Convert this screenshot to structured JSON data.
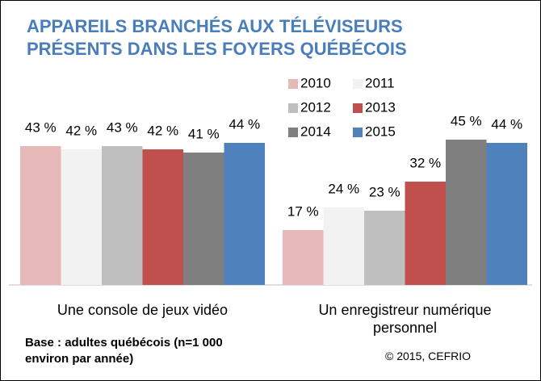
{
  "chart_data": {
    "type": "bar",
    "title": "APPAREILS BRANCHÉS AUX TÉLÉVISEURS\nPRÉSENTS DANS LES FOYERS QUÉBÉCOIS",
    "categories": [
      "Une console de jeux vidéo",
      "Un enregistreur numérique\npersonnel"
    ],
    "series": [
      {
        "name": "2010",
        "color": "#e6b9b8",
        "values": [
          43,
          17
        ],
        "value_labels": [
          "43 %",
          "17 %"
        ]
      },
      {
        "name": "2011",
        "color": "#f2f2f2",
        "values": [
          42,
          24
        ],
        "value_labels": [
          "42 %",
          "24 %"
        ]
      },
      {
        "name": "2012",
        "color": "#bfbfbf",
        "values": [
          43,
          23
        ],
        "value_labels": [
          "43 %",
          "23 %"
        ]
      },
      {
        "name": "2013",
        "color": "#c0504d",
        "values": [
          42,
          32
        ],
        "value_labels": [
          "42 %",
          "32 %"
        ]
      },
      {
        "name": "2014",
        "color": "#7f7f7f",
        "values": [
          41,
          45
        ],
        "value_labels": [
          "41 %",
          "45 %"
        ]
      },
      {
        "name": "2015",
        "color": "#4f81bd",
        "values": [
          44,
          44
        ],
        "value_labels": [
          "44 %",
          "44 %"
        ]
      }
    ],
    "ylim": [
      0,
      50
    ],
    "legend": "top-right",
    "note": "Base : adultes québécois (n=1 000\nenviron par année)",
    "source": "© 2015, CEFRIO"
  }
}
